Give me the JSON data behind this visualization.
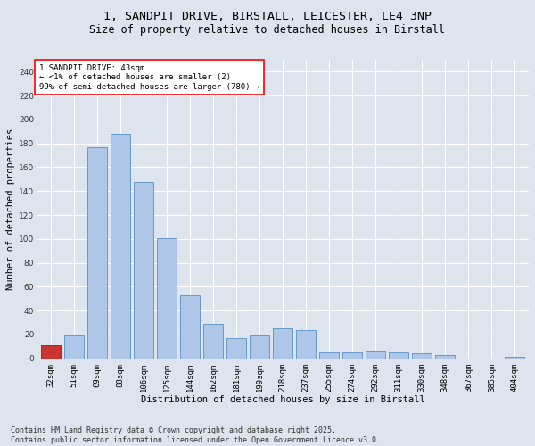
{
  "title1": "1, SANDPIT DRIVE, BIRSTALL, LEICESTER, LE4 3NP",
  "title2": "Size of property relative to detached houses in Birstall",
  "xlabel": "Distribution of detached houses by size in Birstall",
  "ylabel": "Number of detached properties",
  "categories": [
    "32sqm",
    "51sqm",
    "69sqm",
    "88sqm",
    "106sqm",
    "125sqm",
    "144sqm",
    "162sqm",
    "181sqm",
    "199sqm",
    "218sqm",
    "237sqm",
    "255sqm",
    "274sqm",
    "292sqm",
    "311sqm",
    "330sqm",
    "348sqm",
    "367sqm",
    "385sqm",
    "404sqm"
  ],
  "values": [
    11,
    19,
    177,
    188,
    148,
    101,
    53,
    29,
    17,
    19,
    25,
    24,
    5,
    5,
    6,
    5,
    4,
    3,
    0,
    0,
    1
  ],
  "bar_color": "#aec6e8",
  "bar_edge_color": "#6699cc",
  "highlight_bar_index": 0,
  "highlight_bar_color": "#cc3333",
  "highlight_bar_edge_color": "#aa2222",
  "annotation_text": "1 SANDPIT DRIVE: 43sqm\n← <1% of detached houses are smaller (2)\n99% of semi-detached houses are larger (780) →",
  "annotation_box_color": "white",
  "annotation_box_edge": "red",
  "ylim": [
    0,
    250
  ],
  "yticks": [
    0,
    20,
    40,
    60,
    80,
    100,
    120,
    140,
    160,
    180,
    200,
    220,
    240
  ],
  "footer": "Contains HM Land Registry data © Crown copyright and database right 2025.\nContains public sector information licensed under the Open Government Licence v3.0.",
  "bg_color": "#dde4ee",
  "plot_bg_color": "#dde4ee",
  "grid_color": "white",
  "title1_fontsize": 9.5,
  "title2_fontsize": 8.5,
  "axis_label_fontsize": 7.5,
  "tick_fontsize": 6.5,
  "annotation_fontsize": 6.5,
  "footer_fontsize": 6.0
}
